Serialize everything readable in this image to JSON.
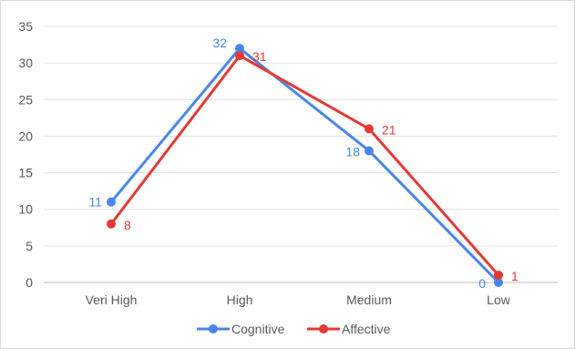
{
  "chart_data": {
    "type": "line",
    "categories": [
      "Veri High",
      "High",
      "Medium",
      "Low"
    ],
    "series": [
      {
        "name": "Cognitive",
        "values": [
          11,
          32,
          18,
          0
        ],
        "color": "#4a86e8"
      },
      {
        "name": "Affective",
        "values": [
          8,
          31,
          21,
          1
        ],
        "color": "#e53935"
      }
    ],
    "ylim": [
      0,
      35
    ],
    "yticks": [
      0,
      5,
      10,
      15,
      20,
      25,
      30,
      35
    ],
    "grid": true,
    "legend": "bottom",
    "title": "",
    "xlabel": "",
    "ylabel": ""
  },
  "colors": {
    "gridline": "#e0e0e0",
    "axis": "#bdbdbd",
    "text": "#595959"
  }
}
